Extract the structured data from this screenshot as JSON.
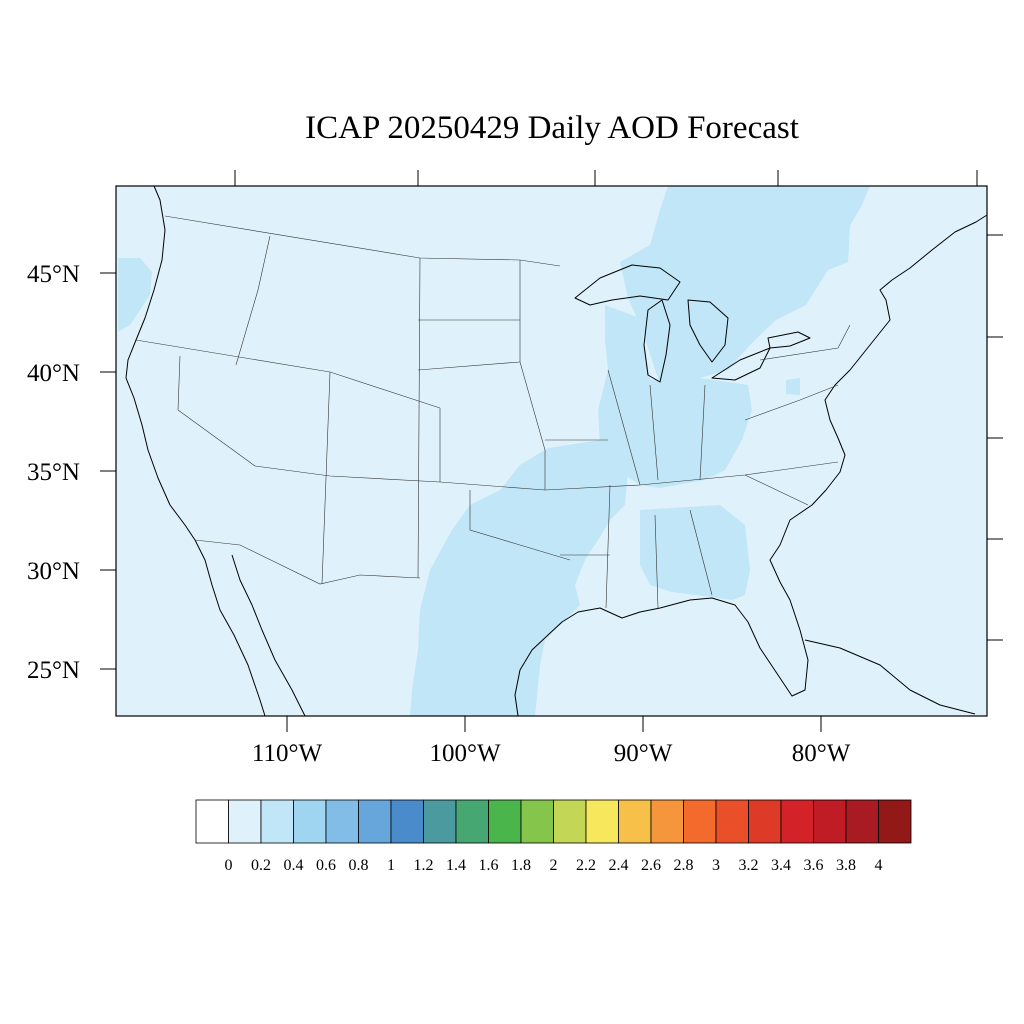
{
  "title": "ICAP 20250429 Daily AOD Forecast",
  "map": {
    "lat_labels": [
      "45°N",
      "40°N",
      "35°N",
      "30°N",
      "25°N"
    ],
    "lon_labels": [
      "110°W",
      "100°W",
      "90°W",
      "80°W"
    ],
    "background_color": "#dff2fb",
    "elevated_color": "#c0e6f7"
  },
  "colorbar": {
    "labels": [
      "0",
      "0.2",
      "0.4",
      "0.6",
      "0.8",
      "1",
      "1.2",
      "1.4",
      "1.6",
      "1.8",
      "2",
      "2.2",
      "2.4",
      "2.6",
      "2.8",
      "3",
      "3.2",
      "3.4",
      "3.6",
      "3.8",
      "4"
    ],
    "colors": [
      "#ffffff",
      "#dff2fb",
      "#c0e6f7",
      "#9fd5f1",
      "#81bde6",
      "#66a6da",
      "#4a8ccb",
      "#4a9a9f",
      "#47a772",
      "#4ab54a",
      "#86c54b",
      "#c4d656",
      "#f6e75c",
      "#f7c049",
      "#f5963d",
      "#f26b2d",
      "#e9502a",
      "#dd3a27",
      "#d42229",
      "#bf1c26",
      "#a81b22",
      "#931818"
    ]
  }
}
